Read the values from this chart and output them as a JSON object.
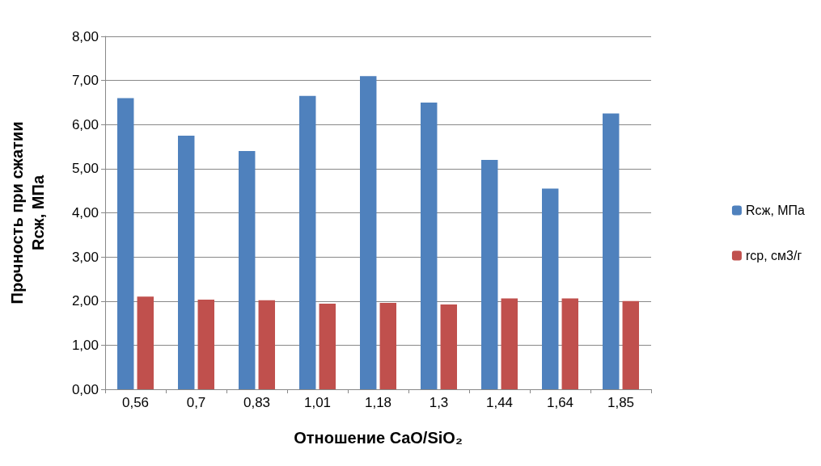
{
  "chart_data": {
    "type": "bar",
    "xlabel": "Отношение CaO/SiO₂",
    "ylabel": "Прочность при сжатии\nRсж, МПа",
    "categories": [
      "0,56",
      "0,7",
      "0,83",
      "1,01",
      "1,18",
      "1,3",
      "1,44",
      "1,64",
      "1,85"
    ],
    "series": [
      {
        "name": "Rсж, МПа",
        "color": "#4f81bd",
        "values": [
          6.6,
          5.75,
          5.4,
          6.65,
          7.1,
          6.5,
          5.2,
          4.55,
          6.25
        ]
      },
      {
        "name": "rср, см3/г",
        "color": "#c0504d",
        "values": [
          2.1,
          2.03,
          2.02,
          1.94,
          1.96,
          1.92,
          2.06,
          2.06,
          2.0
        ]
      }
    ],
    "ylim": [
      0,
      8
    ],
    "yticks": [
      {
        "value": 0,
        "label": "0,00"
      },
      {
        "value": 1,
        "label": "1,00"
      },
      {
        "value": 2,
        "label": "2,00"
      },
      {
        "value": 3,
        "label": "3,00"
      },
      {
        "value": 4,
        "label": "4,00"
      },
      {
        "value": 5,
        "label": "5,00"
      },
      {
        "value": 6,
        "label": "6,00"
      },
      {
        "value": 7,
        "label": "7,00"
      },
      {
        "value": 8,
        "label": "8,00"
      }
    ],
    "grid": "y",
    "legend": "right"
  }
}
